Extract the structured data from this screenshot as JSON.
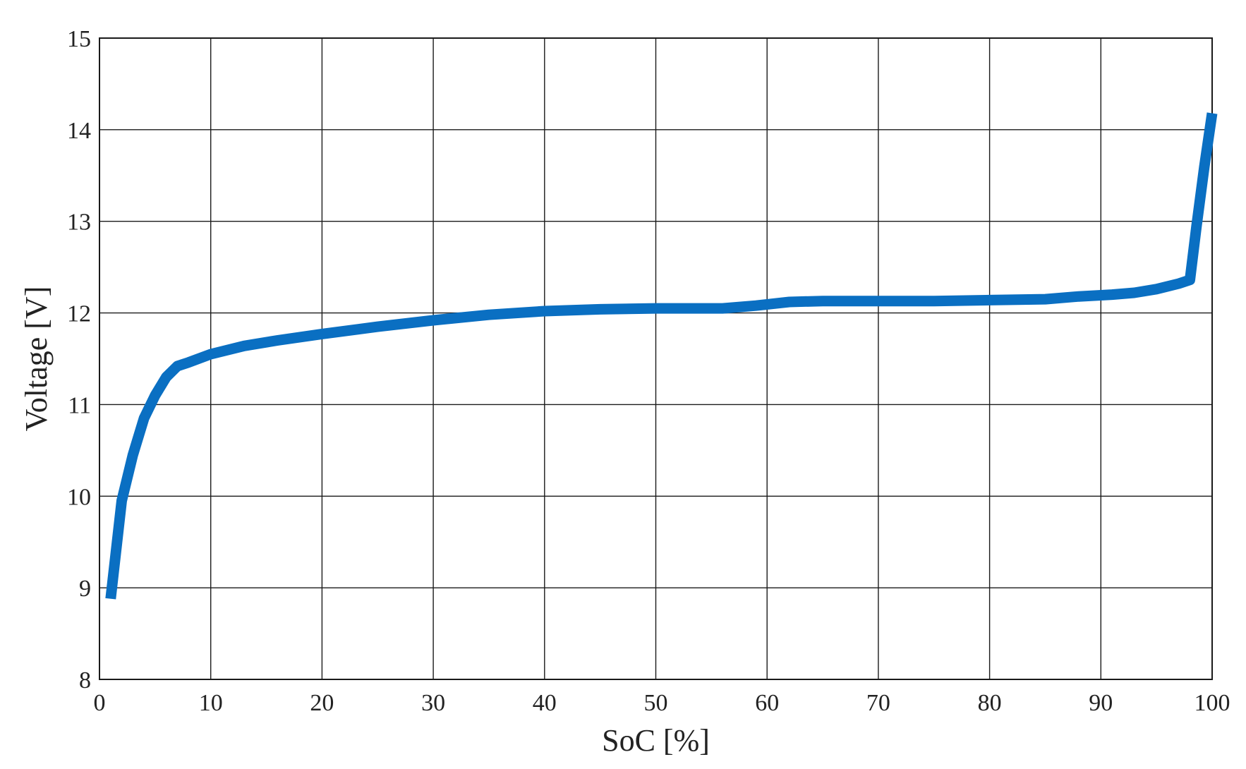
{
  "chart_data": {
    "type": "line",
    "title": "",
    "xlabel": "SoC [%]",
    "ylabel": "Voltage [V]",
    "xlim": [
      0,
      100
    ],
    "ylim": [
      8,
      15
    ],
    "xticks": [
      "0",
      "10",
      "20",
      "30",
      "40",
      "50",
      "60",
      "70",
      "80",
      "90",
      "100"
    ],
    "yticks": [
      "8",
      "9",
      "10",
      "11",
      "12",
      "13",
      "14",
      "15"
    ],
    "grid": true,
    "legend": "none",
    "series": [
      {
        "color": "#0a6fc2",
        "x": [
          1,
          2,
          3,
          4,
          5,
          6,
          7,
          8,
          10,
          13,
          16,
          20,
          25,
          30,
          35,
          40,
          45,
          50,
          56,
          59,
          62,
          65,
          70,
          75,
          80,
          85,
          88,
          91,
          93,
          95,
          97,
          98,
          98.6,
          99.3,
          100
        ],
        "y": [
          8.88,
          9.95,
          10.45,
          10.85,
          11.1,
          11.3,
          11.42,
          11.46,
          11.55,
          11.64,
          11.7,
          11.77,
          11.85,
          11.92,
          11.98,
          12.02,
          12.04,
          12.05,
          12.05,
          12.08,
          12.12,
          12.13,
          12.13,
          12.13,
          12.14,
          12.15,
          12.18,
          12.2,
          12.22,
          12.26,
          12.32,
          12.36,
          12.95,
          13.6,
          14.18
        ]
      }
    ]
  }
}
